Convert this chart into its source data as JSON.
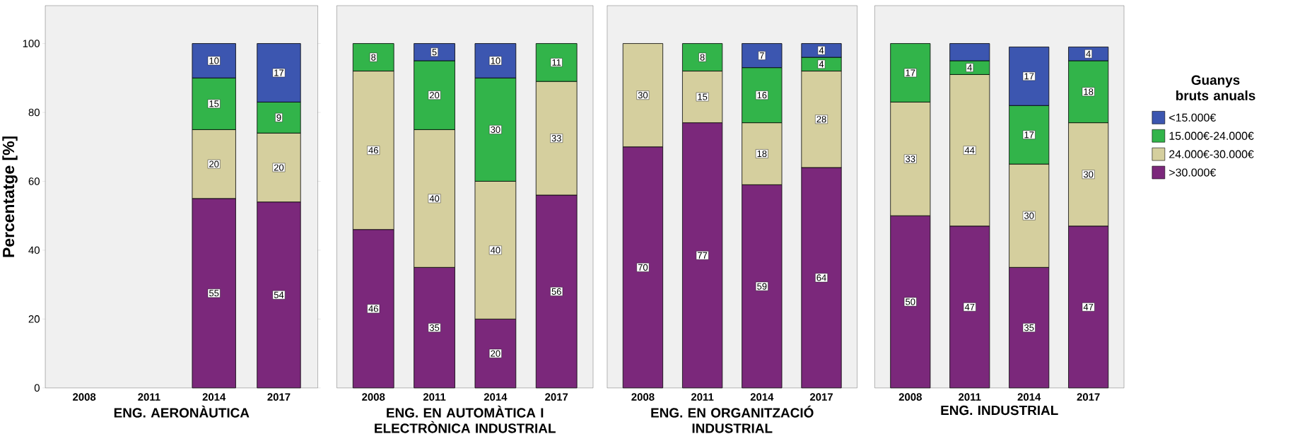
{
  "chart_data": [
    {
      "type": "bar",
      "stacked": true,
      "categories": [
        "2008",
        "2011",
        "2014",
        "2017"
      ],
      "xlabel": "ENG. AERONÀUTICA",
      "ylabel": "Percentatge [%]",
      "ylim": [
        0,
        111
      ],
      "yticks": [
        0,
        20,
        40,
        60,
        80,
        100
      ],
      "data_labels": true,
      "series": [
        {
          "color": "#7b287b",
          "values": [
            null,
            null,
            55,
            54
          ]
        },
        {
          "color": "#d5cf9e",
          "values": [
            null,
            null,
            20,
            20
          ]
        },
        {
          "color": "#32b44a",
          "values": [
            null,
            null,
            15,
            9
          ]
        },
        {
          "color": "#3c56b0",
          "values": [
            null,
            null,
            10,
            17
          ]
        }
      ]
    },
    {
      "type": "bar",
      "stacked": true,
      "categories": [
        "2008",
        "2011",
        "2014",
        "2017"
      ],
      "xlabel": "ENG. EN AUTOMÀTICA I ELECTRÒNICA INDUSTRIAL",
      "ylim": [
        0,
        111
      ],
      "yticks": [
        0,
        20,
        40,
        60,
        80,
        100
      ],
      "tick_labels": "x",
      "data_labels": true,
      "series": [
        {
          "color": "#7b287b",
          "values": [
            46,
            35,
            20,
            56
          ]
        },
        {
          "color": "#d5cf9e",
          "values": [
            46,
            40,
            40,
            33
          ]
        },
        {
          "color": "#32b44a",
          "values": [
            8,
            20,
            30,
            11
          ]
        },
        {
          "color": "#3c56b0",
          "values": [
            null,
            5,
            10,
            null
          ]
        }
      ]
    },
    {
      "type": "bar",
      "stacked": true,
      "categories": [
        "2008",
        "2011",
        "2014",
        "2017"
      ],
      "xlabel": "ENG. EN ORGANITZACIÓ INDUSTRIAL",
      "ylim": [
        0,
        111
      ],
      "yticks": [
        0,
        20,
        40,
        60,
        80,
        100
      ],
      "tick_labels": "x",
      "data_labels": true,
      "series": [
        {
          "color": "#7b287b",
          "values": [
            70,
            77,
            59,
            64
          ]
        },
        {
          "color": "#d5cf9e",
          "values": [
            30,
            15,
            18,
            28
          ]
        },
        {
          "color": "#32b44a",
          "values": [
            null,
            8,
            16,
            4
          ]
        },
        {
          "color": "#3c56b0",
          "values": [
            null,
            null,
            7,
            4
          ]
        }
      ]
    },
    {
      "type": "bar",
      "stacked": true,
      "categories": [
        "2008",
        "2011",
        "2014",
        "2017"
      ],
      "xlabel": "ENG. INDUSTRIAL",
      "ylim": [
        0,
        111
      ],
      "yticks": [
        0,
        20,
        40,
        60,
        80,
        100
      ],
      "tick_labels": "x",
      "legend": "right",
      "legend_title": "Guanys bruts anuals",
      "series": [
        {
          "name": ">30.000€",
          "color": "#7b287b",
          "values": [
            50,
            47,
            35,
            47
          ],
          "value_labels": [
            "50",
            "47",
            "35",
            "47"
          ]
        },
        {
          "name": "24.000€-30.000€",
          "color": "#d5cf9e",
          "values": [
            33,
            44,
            30,
            30
          ],
          "value_labels": [
            "33",
            "44",
            "30",
            "30"
          ]
        },
        {
          "name": "15.000€-24.000€",
          "color": "#32b44a",
          "values": [
            17,
            4,
            17,
            18
          ],
          "value_labels": [
            "17",
            "4",
            "17",
            "18"
          ]
        },
        {
          "name": "<15.000€",
          "color": "#3c56b0",
          "values": [
            null,
            5,
            17,
            4
          ],
          "value_labels": [
            null,
            null,
            "17",
            "4"
          ]
        }
      ]
    }
  ]
}
